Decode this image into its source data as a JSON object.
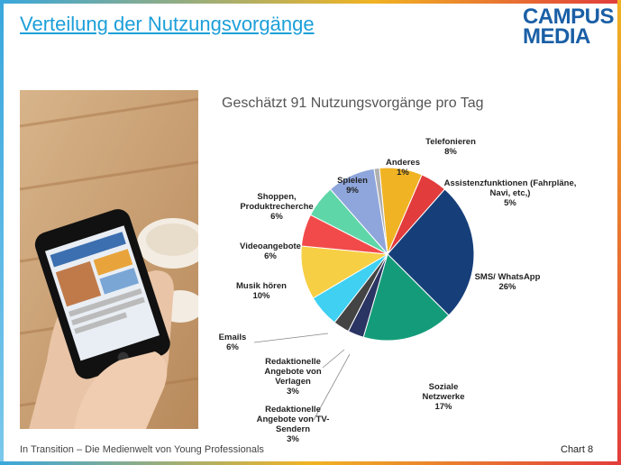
{
  "header": {
    "title": "Verteilung der Nutzungsvorgänge",
    "logo_line1": "CAMPUS",
    "logo_line2": "MEDIA"
  },
  "footer": {
    "text": "In Transition – Die Medienwelt von Young Professionals",
    "chart_number": "Chart 8"
  },
  "chart_data": {
    "type": "pie",
    "title": "Geschätzt 91 Nutzungsvorgänge pro Tag",
    "slices": [
      {
        "label": "Telefonieren",
        "value": 8,
        "pct_text": "8%",
        "color": "#f0b323"
      },
      {
        "label": "Assistenzfunktionen (Fahrpläne, Navi, etc,)",
        "value": 5,
        "pct_text": "5%",
        "color": "#e23c3c"
      },
      {
        "label": "SMS/ WhatsApp",
        "value": 26,
        "pct_text": "26%",
        "color": "#163f7a"
      },
      {
        "label": "Soziale Netzwerke",
        "value": 17,
        "pct_text": "17%",
        "color": "#149c7a"
      },
      {
        "label": "Redaktionelle Angebote von TV-Sendern",
        "value": 3,
        "pct_text": "3%",
        "color": "#2b3563"
      },
      {
        "label": "Redaktionelle Angebote von Verlagen",
        "value": 3,
        "pct_text": "3%",
        "color": "#444444"
      },
      {
        "label": "Emails",
        "value": 6,
        "pct_text": "6%",
        "color": "#3fd0f2"
      },
      {
        "label": "Musik hören",
        "value": 10,
        "pct_text": "10%",
        "color": "#f7cf45"
      },
      {
        "label": "Videoangebote",
        "value": 6,
        "pct_text": "6%",
        "color": "#f24a4a"
      },
      {
        "label": "Shoppen, Produktrecherche",
        "value": 6,
        "pct_text": "6%",
        "color": "#5fd6a8"
      },
      {
        "label": "Spielen",
        "value": 9,
        "pct_text": "9%",
        "color": "#8fa6dc"
      },
      {
        "label": "Anderes",
        "value": 1,
        "pct_text": "1%",
        "color": "#b0b0b0"
      }
    ]
  }
}
